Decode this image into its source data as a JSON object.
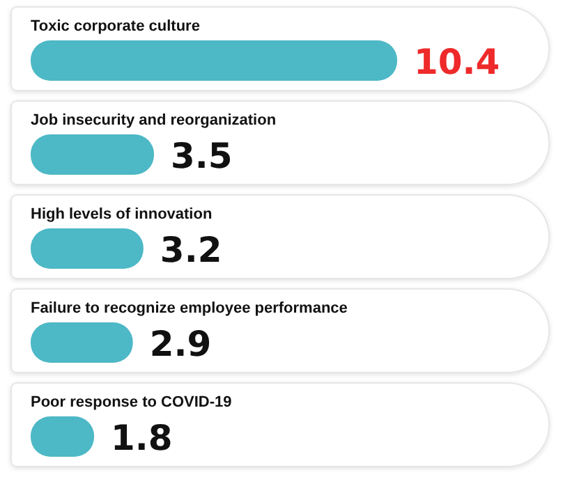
{
  "chart_data": {
    "type": "bar",
    "orientation": "horizontal",
    "categories": [
      "Toxic corporate culture",
      "Job insecurity and reorganization",
      "High levels of innovation",
      "Failure to recognize employee performance",
      "Poor response to COVID-19"
    ],
    "values": [
      10.4,
      3.5,
      3.2,
      2.9,
      1.8
    ],
    "color": "#4db8c6",
    "data_labels": true
  }
}
